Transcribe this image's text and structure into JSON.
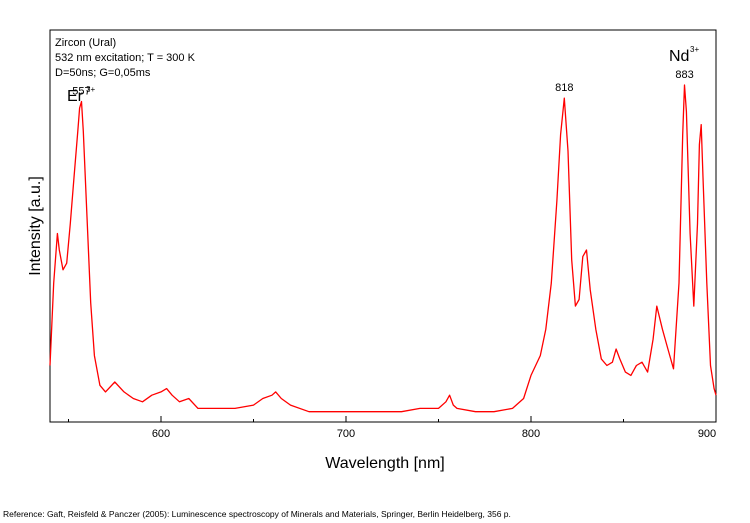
{
  "chart_data": {
    "type": "line",
    "info_lines": [
      "Zircon (Ural)",
      "532 nm excitation; T = 300 K",
      "D=50ns; G=0,05ms"
    ],
    "xlabel": "Wavelength [nm]",
    "ylabel": "Intensity [a.u.]",
    "xlim": [
      540,
      900
    ],
    "ylim": [
      0,
      1
    ],
    "x_ticks": [
      600,
      700,
      800,
      900
    ],
    "grid": false,
    "line_color": "#ff0000",
    "series": [
      {
        "x": [
          540,
          542,
          544,
          545,
          547,
          549,
          551,
          553,
          555,
          556,
          557,
          558,
          560,
          562,
          564,
          567,
          570,
          575,
          580,
          585,
          590,
          595,
          600,
          603,
          606,
          610,
          615,
          620,
          630,
          640,
          650,
          655,
          660,
          662,
          665,
          670,
          680,
          690,
          700,
          710,
          720,
          730,
          740,
          750,
          754,
          756,
          758,
          760,
          770,
          780,
          790,
          796,
          800,
          805,
          808,
          811,
          814,
          816,
          818,
          820,
          822,
          824,
          826,
          828,
          830,
          832,
          835,
          838,
          841,
          844,
          846,
          848,
          851,
          854,
          857,
          860,
          863,
          866,
          868,
          871,
          874,
          877,
          880,
          882,
          883,
          884,
          886,
          888,
          890,
          891,
          892,
          893,
          895,
          897,
          899,
          900
        ],
        "y": [
          0.15,
          0.4,
          0.55,
          0.5,
          0.44,
          0.46,
          0.58,
          0.72,
          0.86,
          0.93,
          0.95,
          0.86,
          0.6,
          0.34,
          0.18,
          0.09,
          0.07,
          0.1,
          0.07,
          0.05,
          0.04,
          0.06,
          0.07,
          0.08,
          0.06,
          0.04,
          0.05,
          0.02,
          0.02,
          0.02,
          0.03,
          0.05,
          0.06,
          0.07,
          0.05,
          0.03,
          0.01,
          0.01,
          0.01,
          0.01,
          0.01,
          0.01,
          0.02,
          0.02,
          0.04,
          0.06,
          0.03,
          0.02,
          0.01,
          0.01,
          0.02,
          0.05,
          0.12,
          0.18,
          0.26,
          0.4,
          0.65,
          0.85,
          0.96,
          0.8,
          0.47,
          0.33,
          0.35,
          0.48,
          0.5,
          0.38,
          0.26,
          0.17,
          0.15,
          0.16,
          0.2,
          0.17,
          0.13,
          0.12,
          0.15,
          0.16,
          0.13,
          0.23,
          0.33,
          0.26,
          0.2,
          0.14,
          0.4,
          0.85,
          1.0,
          0.92,
          0.55,
          0.33,
          0.58,
          0.82,
          0.88,
          0.72,
          0.4,
          0.15,
          0.08,
          0.06
        ]
      }
    ],
    "peak_labels": [
      {
        "x": 557,
        "text": "557"
      },
      {
        "x": 818,
        "text": "818"
      },
      {
        "x": 883,
        "text": "883"
      }
    ],
    "ion_labels": [
      {
        "name": "Er",
        "sup": "3+"
      },
      {
        "name": "Nd",
        "sup": "3+"
      }
    ]
  },
  "reference": "Reference: Gaft, Reisfeld & Panczer (2005): Luminescence spectroscopy of Minerals and Materials, Springer, Berlin Heidelberg, 356 p."
}
